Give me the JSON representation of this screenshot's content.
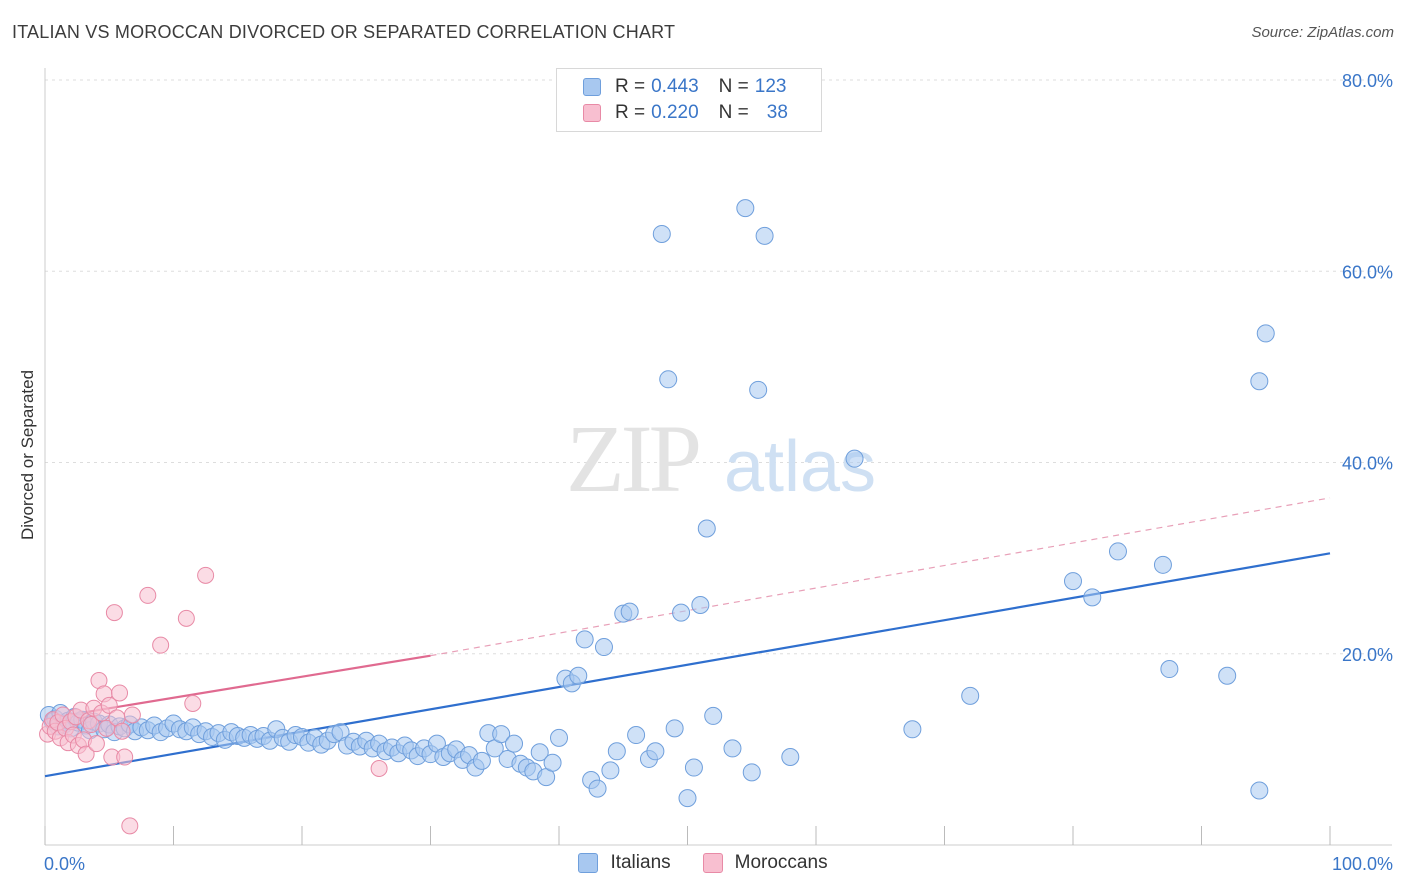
{
  "title": "ITALIAN VS MOROCCAN DIVORCED OR SEPARATED CORRELATION CHART",
  "source": "Source: ZipAtlas.com",
  "watermark": {
    "zip": "ZIP",
    "atlas": "atlas"
  },
  "legend": {
    "rows": [
      {
        "r_label": "R =",
        "r_value": "0.443",
        "n_label": "N =",
        "n_value": "123",
        "color": "#a8c8f0",
        "border": "#6f9fdc"
      },
      {
        "r_label": "R =",
        "r_value": "0.220",
        "n_label": "N =",
        "n_value": "38",
        "color": "#f8bfd0",
        "border": "#e88aa6"
      }
    ]
  },
  "bottom_legend": [
    {
      "label": "Italians",
      "color": "#a8c8f0",
      "border": "#6f9fdc"
    },
    {
      "label": "Moroccans",
      "color": "#f8bfd0",
      "border": "#e88aa6"
    }
  ],
  "chart_data": {
    "type": "scatter",
    "title": "ITALIAN VS MOROCCAN DIVORCED OR SEPARATED CORRELATION CHART",
    "xlabel": "",
    "ylabel": "Divorced or Separated",
    "xlim": [
      0,
      100
    ],
    "ylim": [
      0,
      80
    ],
    "x_tick_labels": [
      "0.0%",
      "100.0%"
    ],
    "y_tick_labels": [
      "20.0%",
      "40.0%",
      "60.0%",
      "80.0%"
    ],
    "y_ticks": [
      20,
      40,
      60,
      80
    ],
    "grid": "horizontal dashed",
    "legend_placement": "top-center",
    "series": [
      {
        "name": "Italians",
        "color": "#a8c8f0",
        "stroke": "#6f9fdc",
        "trend": {
          "x0": 0,
          "y0": 7.2,
          "x1": 100,
          "y1": 30.5,
          "color": "#2f6fce"
        },
        "points": [
          [
            0.3,
            13.6
          ],
          [
            0.6,
            12.9
          ],
          [
            0.8,
            13.2
          ],
          [
            1.0,
            12.4
          ],
          [
            1.2,
            13.8
          ],
          [
            1.5,
            12.6
          ],
          [
            1.8,
            13.0
          ],
          [
            2.0,
            12.2
          ],
          [
            2.3,
            13.4
          ],
          [
            2.6,
            12.8
          ],
          [
            2.9,
            13.1
          ],
          [
            3.2,
            12.5
          ],
          [
            3.5,
            12.0
          ],
          [
            3.8,
            12.9
          ],
          [
            4.2,
            12.7
          ],
          [
            4.6,
            12.1
          ],
          [
            5.0,
            12.6
          ],
          [
            5.4,
            11.8
          ],
          [
            5.8,
            12.4
          ],
          [
            6.2,
            12.2
          ],
          [
            6.6,
            12.6
          ],
          [
            7.0,
            11.9
          ],
          [
            7.5,
            12.3
          ],
          [
            8.0,
            12.0
          ],
          [
            8.5,
            12.5
          ],
          [
            9.0,
            11.8
          ],
          [
            9.5,
            12.2
          ],
          [
            10.0,
            12.7
          ],
          [
            10.5,
            12.1
          ],
          [
            11.0,
            11.9
          ],
          [
            11.5,
            12.3
          ],
          [
            12.0,
            11.6
          ],
          [
            12.5,
            11.9
          ],
          [
            13.0,
            11.3
          ],
          [
            13.5,
            11.7
          ],
          [
            14.0,
            11.0
          ],
          [
            14.5,
            11.8
          ],
          [
            15.0,
            11.4
          ],
          [
            15.5,
            11.2
          ],
          [
            16.0,
            11.5
          ],
          [
            16.5,
            11.1
          ],
          [
            17.0,
            11.4
          ],
          [
            17.5,
            10.9
          ],
          [
            18.0,
            12.1
          ],
          [
            18.5,
            11.2
          ],
          [
            19.0,
            10.8
          ],
          [
            19.5,
            11.5
          ],
          [
            20.0,
            11.3
          ],
          [
            20.5,
            10.7
          ],
          [
            21.0,
            11.2
          ],
          [
            21.5,
            10.5
          ],
          [
            22.0,
            10.9
          ],
          [
            22.5,
            11.6
          ],
          [
            23.0,
            11.8
          ],
          [
            23.5,
            10.4
          ],
          [
            24.0,
            10.8
          ],
          [
            24.5,
            10.3
          ],
          [
            25.0,
            10.9
          ],
          [
            25.5,
            10.1
          ],
          [
            26.0,
            10.6
          ],
          [
            26.5,
            9.8
          ],
          [
            27.0,
            10.2
          ],
          [
            27.5,
            9.6
          ],
          [
            28.0,
            10.4
          ],
          [
            28.5,
            9.9
          ],
          [
            29.0,
            9.3
          ],
          [
            29.5,
            10.1
          ],
          [
            30.0,
            9.5
          ],
          [
            30.5,
            10.6
          ],
          [
            31.0,
            9.2
          ],
          [
            31.5,
            9.6
          ],
          [
            32.0,
            10.0
          ],
          [
            32.5,
            8.9
          ],
          [
            33.0,
            9.4
          ],
          [
            33.5,
            8.1
          ],
          [
            34.0,
            8.8
          ],
          [
            34.5,
            11.7
          ],
          [
            35.0,
            10.1
          ],
          [
            35.5,
            11.6
          ],
          [
            36.0,
            9.0
          ],
          [
            36.5,
            10.6
          ],
          [
            37.0,
            8.5
          ],
          [
            37.5,
            8.1
          ],
          [
            38.0,
            7.7
          ],
          [
            38.5,
            9.7
          ],
          [
            39.0,
            7.1
          ],
          [
            39.5,
            8.6
          ],
          [
            40.0,
            11.2
          ],
          [
            40.5,
            17.4
          ],
          [
            41.0,
            16.9
          ],
          [
            41.5,
            17.7
          ],
          [
            42.0,
            21.5
          ],
          [
            42.5,
            6.8
          ],
          [
            43.0,
            5.9
          ],
          [
            43.5,
            20.7
          ],
          [
            44.0,
            7.8
          ],
          [
            44.5,
            9.8
          ],
          [
            45.0,
            24.2
          ],
          [
            45.5,
            24.4
          ],
          [
            46.0,
            11.5
          ],
          [
            47.0,
            9.0
          ],
          [
            47.5,
            9.8
          ],
          [
            48.0,
            63.9
          ],
          [
            48.5,
            48.7
          ],
          [
            49.0,
            12.2
          ],
          [
            49.5,
            24.3
          ],
          [
            50.0,
            4.9
          ],
          [
            50.5,
            8.1
          ],
          [
            51.0,
            25.1
          ],
          [
            51.5,
            33.1
          ],
          [
            52.0,
            13.5
          ],
          [
            53.5,
            10.1
          ],
          [
            54.5,
            66.6
          ],
          [
            55.0,
            7.6
          ],
          [
            55.5,
            47.6
          ],
          [
            56.0,
            63.7
          ],
          [
            58.0,
            9.2
          ],
          [
            63.0,
            40.4
          ],
          [
            67.5,
            12.1
          ],
          [
            72.0,
            15.6
          ],
          [
            80.0,
            27.6
          ],
          [
            81.5,
            25.9
          ],
          [
            83.5,
            30.7
          ],
          [
            87.0,
            29.3
          ],
          [
            87.5,
            18.4
          ],
          [
            94.5,
            48.5
          ],
          [
            92.0,
            17.7
          ],
          [
            94.5,
            5.7
          ],
          [
            95.0,
            53.5
          ]
        ]
      },
      {
        "name": "Moroccans",
        "color": "#f8bfd0",
        "stroke": "#e88aa6",
        "trend": {
          "x0": 0,
          "y0": 13.2,
          "x1": 30,
          "y1": 19.8,
          "color": "#e06a90"
        },
        "trend_dashed": {
          "x0": 30,
          "y0": 19.8,
          "x1": 100,
          "y1": 36.3,
          "color": "#e8a0b8"
        },
        "points": [
          [
            0.2,
            11.6
          ],
          [
            0.4,
            12.4
          ],
          [
            0.6,
            13.1
          ],
          [
            0.8,
            11.9
          ],
          [
            1.0,
            12.8
          ],
          [
            1.2,
            11.2
          ],
          [
            1.4,
            13.6
          ],
          [
            1.6,
            12.2
          ],
          [
            1.8,
            10.7
          ],
          [
            2.0,
            12.9
          ],
          [
            2.2,
            11.5
          ],
          [
            2.4,
            13.4
          ],
          [
            2.6,
            10.4
          ],
          [
            2.8,
            14.1
          ],
          [
            3.0,
            11.0
          ],
          [
            3.2,
            9.5
          ],
          [
            3.4,
            13.0
          ],
          [
            3.6,
            12.6
          ],
          [
            3.8,
            14.3
          ],
          [
            4.0,
            10.6
          ],
          [
            4.2,
            17.2
          ],
          [
            4.4,
            13.8
          ],
          [
            4.6,
            15.8
          ],
          [
            4.8,
            12.2
          ],
          [
            5.0,
            14.6
          ],
          [
            5.2,
            9.2
          ],
          [
            5.4,
            24.3
          ],
          [
            5.6,
            13.3
          ],
          [
            5.8,
            15.9
          ],
          [
            6.0,
            11.9
          ],
          [
            6.2,
            9.2
          ],
          [
            6.6,
            2.0
          ],
          [
            6.8,
            13.6
          ],
          [
            8.0,
            26.1
          ],
          [
            9.0,
            20.9
          ],
          [
            11.0,
            23.7
          ],
          [
            11.5,
            14.8
          ],
          [
            12.5,
            28.2
          ],
          [
            26.0,
            8.0
          ]
        ]
      }
    ]
  }
}
